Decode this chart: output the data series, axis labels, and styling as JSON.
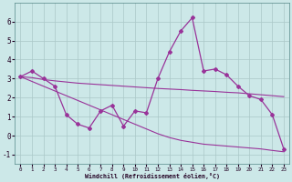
{
  "x": [
    0,
    1,
    2,
    3,
    4,
    5,
    6,
    7,
    8,
    9,
    10,
    11,
    12,
    13,
    14,
    15,
    16,
    17,
    18,
    19,
    20,
    21,
    22,
    23
  ],
  "y_main": [
    3.1,
    3.4,
    3.0,
    2.6,
    1.1,
    0.6,
    0.4,
    1.3,
    1.6,
    0.5,
    1.3,
    1.2,
    3.0,
    4.4,
    5.5,
    6.2,
    3.4,
    3.5,
    3.2,
    2.6,
    2.1,
    1.9,
    1.1,
    -0.7
  ],
  "y_trend1": [
    3.1,
    3.05,
    2.95,
    2.88,
    2.82,
    2.76,
    2.72,
    2.68,
    2.64,
    2.6,
    2.56,
    2.52,
    2.48,
    2.45,
    2.42,
    2.38,
    2.35,
    2.32,
    2.28,
    2.25,
    2.2,
    2.15,
    2.1,
    2.05
  ],
  "y_trend2": [
    3.1,
    2.85,
    2.6,
    2.35,
    2.1,
    1.85,
    1.6,
    1.35,
    1.1,
    0.85,
    0.6,
    0.35,
    0.1,
    -0.1,
    -0.25,
    -0.35,
    -0.45,
    -0.5,
    -0.55,
    -0.6,
    -0.65,
    -0.7,
    -0.78,
    -0.85
  ],
  "line_color": "#993399",
  "bg_color": "#cce8e8",
  "grid_color": "#aac8c8",
  "xlabel": "Windchill (Refroidissement éolien,°C)",
  "ylim": [
    -1.5,
    7.0
  ],
  "xlim": [
    -0.5,
    23.5
  ],
  "yticks": [
    -1,
    0,
    1,
    2,
    3,
    4,
    5,
    6
  ],
  "xticks": [
    0,
    1,
    2,
    3,
    4,
    5,
    6,
    7,
    8,
    9,
    10,
    11,
    12,
    13,
    14,
    15,
    16,
    17,
    18,
    19,
    20,
    21,
    22,
    23
  ]
}
